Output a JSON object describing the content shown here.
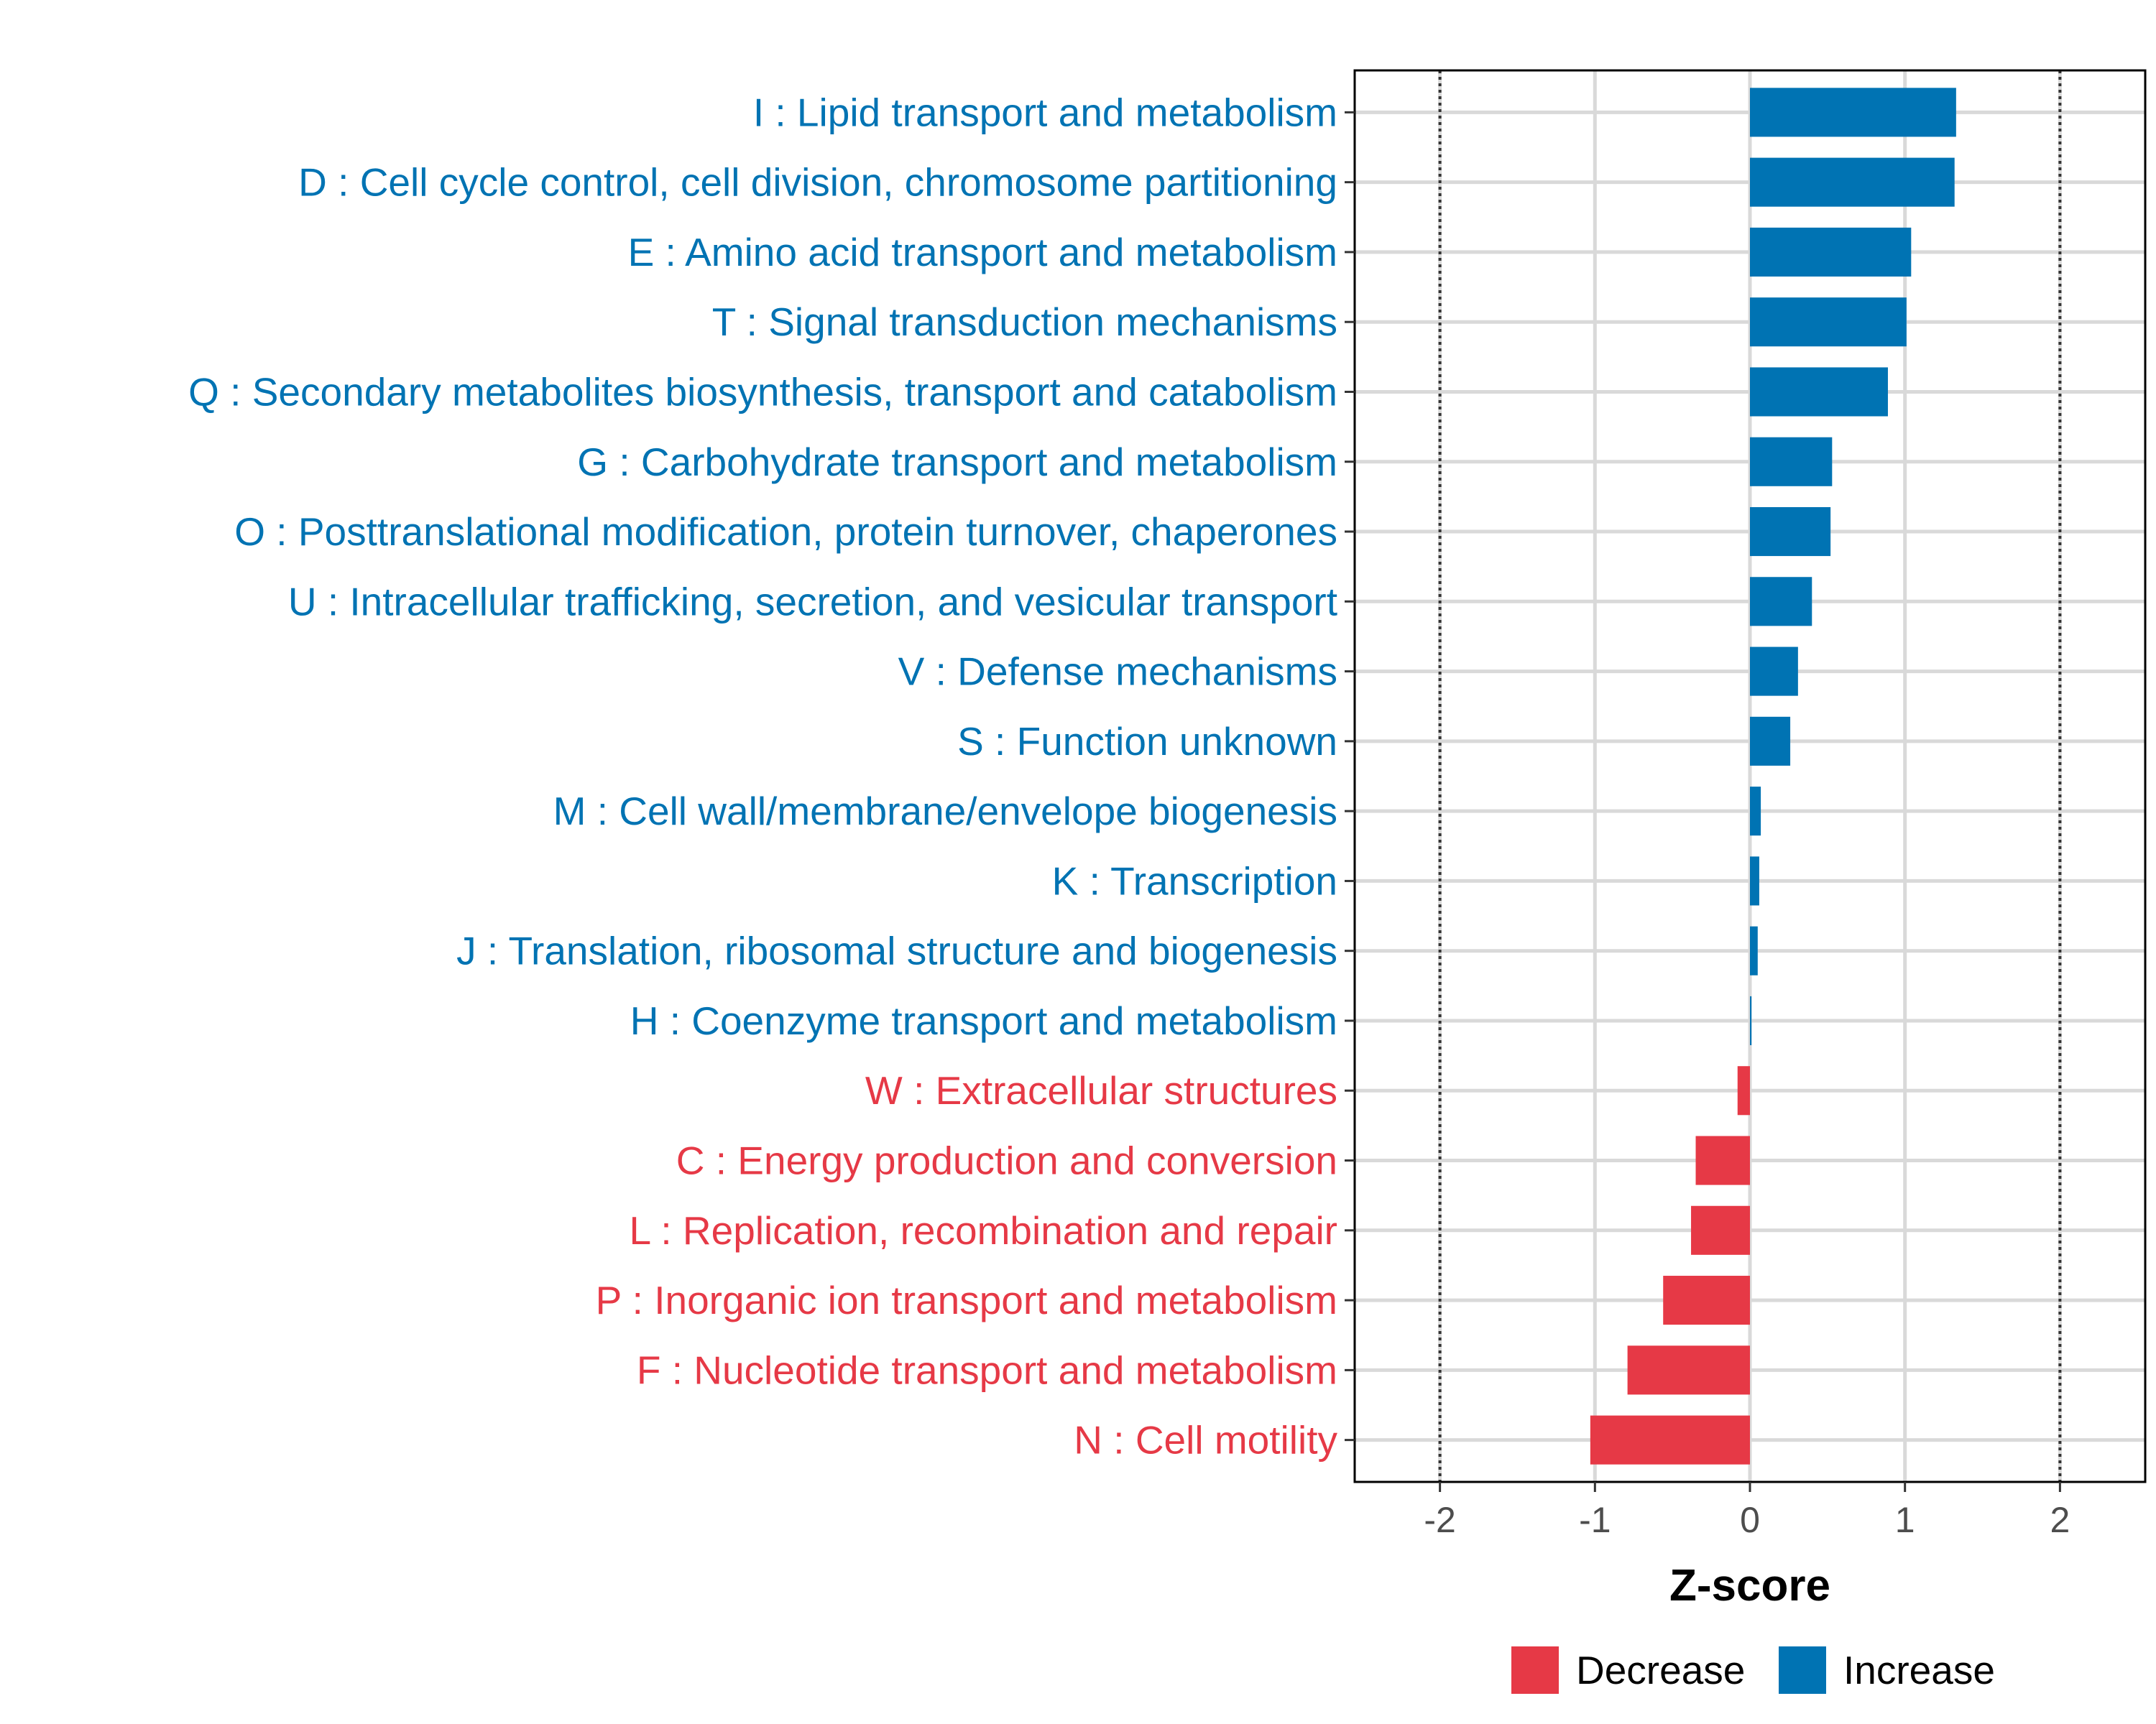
{
  "chart_data": {
    "type": "bar",
    "orientation": "horizontal",
    "title": "",
    "xlabel": "Z-score",
    "ylabel": "",
    "xlim": [
      -2.55,
      2.55
    ],
    "xticks": [
      -2,
      -1,
      0,
      1,
      2
    ],
    "xtick_labels": [
      "-2",
      "-1",
      "0",
      "1",
      "2"
    ],
    "reference_lines": [
      -2,
      2
    ],
    "grid": true,
    "colors": {
      "Increase": "#0073b3",
      "Decrease": "#e63946"
    },
    "legend": {
      "placement": "bottom",
      "entries": [
        {
          "name": "Decrease",
          "color": "#e63946"
        },
        {
          "name": "Increase",
          "color": "#0073b3"
        }
      ]
    },
    "bars": [
      {
        "label": "I : Lipid transport and metabolism",
        "value": 1.33,
        "direction": "Increase"
      },
      {
        "label": "D : Cell cycle control, cell division, chromosome partitioning",
        "value": 1.32,
        "direction": "Increase"
      },
      {
        "label": "E : Amino acid transport and metabolism",
        "value": 1.04,
        "direction": "Increase"
      },
      {
        "label": "T : Signal transduction mechanisms",
        "value": 1.01,
        "direction": "Increase"
      },
      {
        "label": "Q : Secondary metabolites biosynthesis, transport and catabolism",
        "value": 0.89,
        "direction": "Increase"
      },
      {
        "label": "G : Carbohydrate transport and metabolism",
        "value": 0.53,
        "direction": "Increase"
      },
      {
        "label": "O : Posttranslational modification, protein turnover, chaperones",
        "value": 0.52,
        "direction": "Increase"
      },
      {
        "label": "U : Intracellular trafficking, secretion, and vesicular transport",
        "value": 0.4,
        "direction": "Increase"
      },
      {
        "label": "V : Defense mechanisms",
        "value": 0.31,
        "direction": "Increase"
      },
      {
        "label": "S : Function unknown",
        "value": 0.26,
        "direction": "Increase"
      },
      {
        "label": "M : Cell wall/membrane/envelope biogenesis",
        "value": 0.07,
        "direction": "Increase"
      },
      {
        "label": "K : Transcription",
        "value": 0.06,
        "direction": "Increase"
      },
      {
        "label": "J : Translation, ribosomal structure and biogenesis",
        "value": 0.05,
        "direction": "Increase"
      },
      {
        "label": "H : Coenzyme transport and metabolism",
        "value": 0.01,
        "direction": "Increase"
      },
      {
        "label": "W : Extracellular structures",
        "value": -0.08,
        "direction": "Decrease"
      },
      {
        "label": "C : Energy production and conversion",
        "value": -0.35,
        "direction": "Decrease"
      },
      {
        "label": "L : Replication, recombination and repair",
        "value": -0.38,
        "direction": "Decrease"
      },
      {
        "label": "P : Inorganic ion transport and metabolism",
        "value": -0.56,
        "direction": "Decrease"
      },
      {
        "label": "F : Nucleotide transport and metabolism",
        "value": -0.79,
        "direction": "Decrease"
      },
      {
        "label": "N : Cell motility",
        "value": -1.03,
        "direction": "Decrease"
      }
    ]
  }
}
